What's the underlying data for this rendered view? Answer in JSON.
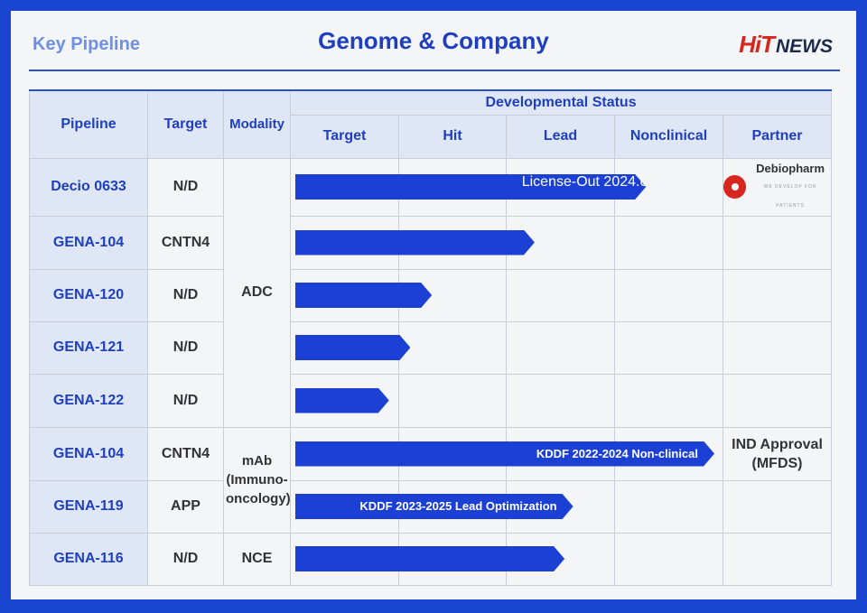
{
  "header": {
    "left_label": "Key Pipeline",
    "title": "Genome & Company",
    "logo_hit": "HiT",
    "logo_news": "NEWS"
  },
  "table": {
    "col_pipeline": "Pipeline",
    "col_target": "Target",
    "col_modality": "Modality",
    "col_status": "Developmental Status",
    "stages": [
      "Target",
      "Hit",
      "Lead",
      "Nonclinical",
      "Partner"
    ],
    "modality_groups": [
      "ADC",
      "mAb (Immuno-oncology)",
      "NCE"
    ],
    "rows": [
      {
        "pipeline": "Decio 0633",
        "target": "N/D",
        "progress": 0.82,
        "bar_label": "License-Out 2024.05",
        "partner": "Debiopharm",
        "partner_tagline": "WE DEVELOP FOR PATIENTS"
      },
      {
        "pipeline": "GENA-104",
        "target": "CNTN4",
        "progress": 0.56,
        "bar_label": "",
        "partner": ""
      },
      {
        "pipeline": "GENA-120",
        "target": "N/D",
        "progress": 0.32,
        "bar_label": "",
        "partner": ""
      },
      {
        "pipeline": "GENA-121",
        "target": "N/D",
        "progress": 0.27,
        "bar_label": "",
        "partner": ""
      },
      {
        "pipeline": "GENA-122",
        "target": "N/D",
        "progress": 0.22,
        "bar_label": "",
        "partner": ""
      },
      {
        "pipeline": "GENA-104",
        "target": "CNTN4",
        "progress": 0.98,
        "bar_label": "KDDF 2022-2024 Non-clinical",
        "partner": "IND Approval (MFDS)"
      },
      {
        "pipeline": "GENA-119",
        "target": "APP",
        "progress": 0.65,
        "bar_label": "KDDF 2023-2025 Lead Optimization",
        "partner": ""
      },
      {
        "pipeline": "GENA-116",
        "target": "N/D",
        "progress": 0.63,
        "bar_label": "",
        "partner": ""
      }
    ]
  },
  "colors": {
    "accent": "#1c40d4",
    "header_bg": "#dfe6f5",
    "frame": "#1a45d1",
    "logo_red": "#d7261e"
  }
}
